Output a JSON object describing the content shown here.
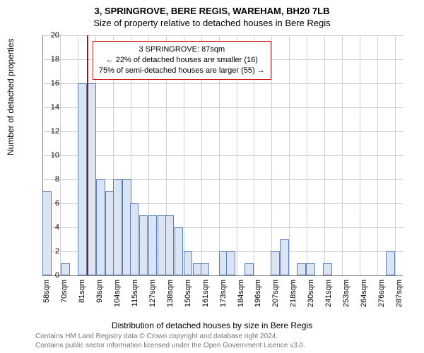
{
  "chart": {
    "type": "histogram",
    "title": "3, SPRINGROVE, BERE REGIS, WAREHAM, BH20 7LB",
    "subtitle": "Size of property relative to detached houses in Bere Regis",
    "ylabel": "Number of detached properties",
    "xlabel": "Distribution of detached houses by size in Bere Regis",
    "ylim": [
      0,
      20
    ],
    "ytick_step": 2,
    "yticks": [
      0,
      2,
      4,
      6,
      8,
      10,
      12,
      14,
      16,
      18,
      20
    ],
    "x_start": 58,
    "x_end": 293,
    "x_tick_step": 11.5,
    "x_tick_labels": [
      "58sqm",
      "70sqm",
      "81sqm",
      "93sqm",
      "104sqm",
      "115sqm",
      "127sqm",
      "138sqm",
      "150sqm",
      "161sqm",
      "173sqm",
      "184sqm",
      "196sqm",
      "207sqm",
      "218sqm",
      "230sqm",
      "241sqm",
      "253sqm",
      "264sqm",
      "276sqm",
      "287sqm"
    ],
    "bar_color": "#dbe4f3",
    "bar_border": "#5b7fb5",
    "grid_color": "#d0d0d0",
    "background_color": "#ffffff",
    "marker_color": "#cc0000",
    "marker_x": 87,
    "bin_width": 5.875,
    "bins": [
      {
        "x": 58,
        "count": 7
      },
      {
        "x": 70,
        "count": 1
      },
      {
        "x": 81,
        "count": 16
      },
      {
        "x": 87,
        "count": 16
      },
      {
        "x": 93,
        "count": 8
      },
      {
        "x": 99,
        "count": 7
      },
      {
        "x": 104,
        "count": 8
      },
      {
        "x": 110,
        "count": 8
      },
      {
        "x": 115,
        "count": 6
      },
      {
        "x": 121,
        "count": 5
      },
      {
        "x": 127,
        "count": 5
      },
      {
        "x": 133,
        "count": 5
      },
      {
        "x": 138,
        "count": 5
      },
      {
        "x": 144,
        "count": 4
      },
      {
        "x": 150,
        "count": 2
      },
      {
        "x": 156,
        "count": 1
      },
      {
        "x": 161,
        "count": 1
      },
      {
        "x": 173,
        "count": 2
      },
      {
        "x": 178,
        "count": 2
      },
      {
        "x": 190,
        "count": 1
      },
      {
        "x": 207,
        "count": 2
      },
      {
        "x": 213,
        "count": 3
      },
      {
        "x": 224,
        "count": 1
      },
      {
        "x": 230,
        "count": 1
      },
      {
        "x": 241,
        "count": 1
      },
      {
        "x": 282,
        "count": 2
      }
    ],
    "annotation": {
      "line1": "3 SPRINGROVE: 87sqm",
      "line2": "← 22% of detached houses are smaller (16)",
      "line3": "75% of semi-detached houses are larger (55) →"
    },
    "footer": {
      "line1": "Contains HM Land Registry data © Crown copyright and database right 2024.",
      "line2": "Contains public sector information licensed under the Open Government Licence v3.0."
    }
  }
}
